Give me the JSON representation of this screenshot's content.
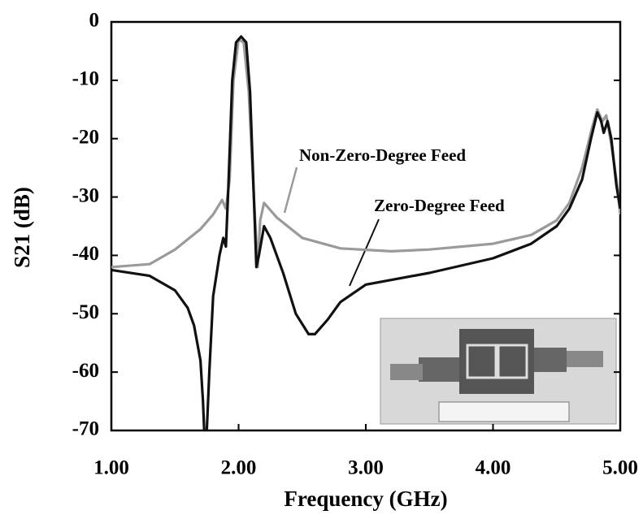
{
  "chart_data": {
    "type": "line",
    "xlabel": "Frequency (GHz)",
    "ylabel": "S21 (dB)",
    "xlim": [
      1,
      5
    ],
    "ylim": [
      -70,
      0
    ],
    "xticks": [
      {
        "value": 1,
        "label": "1.00"
      },
      {
        "value": 2,
        "label": "2.00"
      },
      {
        "value": 3,
        "label": "3.00"
      },
      {
        "value": 4,
        "label": "4.00"
      },
      {
        "value": 5,
        "label": "5.00"
      }
    ],
    "yticks": [
      0,
      -10,
      -20,
      -30,
      -40,
      -50,
      -60,
      -70
    ],
    "annotations": [
      "Non-Zero-Degree Feed",
      "Zero-Degree Feed"
    ],
    "series": [
      {
        "name": "Non-Zero-Degree Feed",
        "color": "#9a9a9a",
        "x": [
          1.0,
          1.3,
          1.5,
          1.7,
          1.8,
          1.87,
          1.9,
          1.93,
          1.96,
          2.0,
          2.04,
          2.08,
          2.12,
          2.15,
          2.17,
          2.2,
          2.3,
          2.5,
          2.8,
          3.2,
          3.5,
          4.0,
          4.3,
          4.5,
          4.6,
          4.7,
          4.78,
          4.82,
          4.86,
          4.89,
          4.93,
          4.97,
          5.0
        ],
        "values": [
          -42,
          -41.5,
          -39,
          -35.5,
          -33,
          -30.5,
          -32,
          -27,
          -10,
          -3,
          -3.5,
          -12,
          -30,
          -42,
          -34,
          -31,
          -33.5,
          -37,
          -38.8,
          -39.3,
          -39,
          -38,
          -36.5,
          -34,
          -31,
          -25,
          -18,
          -15,
          -17,
          -16,
          -21,
          -27,
          -33
        ]
      },
      {
        "name": "Zero-Degree Feed",
        "color": "#111111",
        "x": [
          1.0,
          1.3,
          1.5,
          1.6,
          1.65,
          1.7,
          1.72,
          1.73,
          1.75,
          1.77,
          1.8,
          1.85,
          1.88,
          1.9,
          1.92,
          1.95,
          1.98,
          2.02,
          2.06,
          2.09,
          2.12,
          2.14,
          2.16,
          2.2,
          2.25,
          2.35,
          2.45,
          2.55,
          2.6,
          2.7,
          2.8,
          3.0,
          3.5,
          4.0,
          4.3,
          4.5,
          4.6,
          4.7,
          4.77,
          4.82,
          4.85,
          4.87,
          4.9,
          4.93,
          4.97,
          5.0
        ],
        "values": [
          -42.5,
          -43.5,
          -46,
          -49,
          -52,
          -58,
          -65,
          -70,
          -70,
          -60,
          -47,
          -40,
          -37,
          -38.5,
          -28,
          -10,
          -3.5,
          -2.5,
          -3.5,
          -12,
          -30,
          -42,
          -40,
          -35,
          -37,
          -43,
          -50,
          -53.5,
          -53.5,
          -51,
          -48,
          -45,
          -43,
          -40.5,
          -38,
          -35,
          -32,
          -27,
          -20,
          -15.5,
          -17,
          -19,
          -17,
          -20,
          -28,
          -32
        ]
      }
    ]
  }
}
